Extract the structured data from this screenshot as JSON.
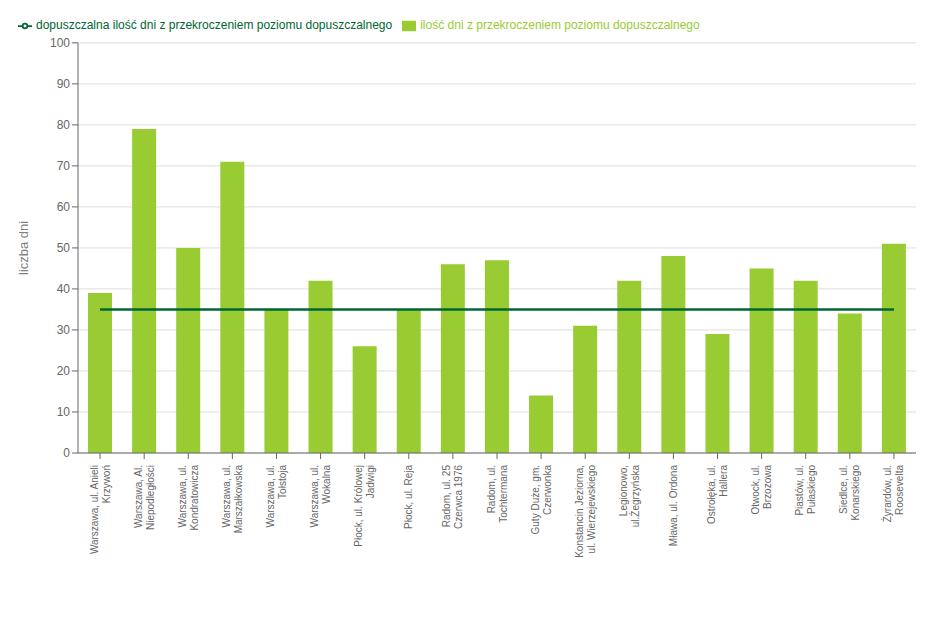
{
  "chart_data": {
    "type": "bar",
    "categories": [
      "Warszawa, ul. Anieli\nKrzywoń",
      "Warszawa, Al.\nNiepodległości",
      "Warszawa, ul.\nKondratowicza",
      "Warszawa, ul.\nMarszałkowska",
      "Warszawa, ul.\nTołstoja",
      "Warszawa, ul.\nWokalna",
      "Płock, ul. Królowej\nJadwigi",
      "Płock, ul. Reja",
      "Radom, ul. 25\nCzerwca 1976",
      "Radom, ul.\nTochtermana",
      "Guty Duże, gm.\nCzerwonka",
      "Konstancin Jeziorna,\nul. Wierzejewskiego",
      "Legionowo,\nul.Żegrzyńska",
      "Mława, ul. Ordona",
      "Ostrołęka, ul.\nHallera",
      "Otwock, ul.\nBrzozowa",
      "Piastów, ul.\nPułaskiego",
      "Siedlce, ul.\nKonarskiego",
      "Żyrardów, ul.\nRoosevelta"
    ],
    "series": [
      {
        "name": "ilość dni z przekroczeniem poziomu dopuszczalnego",
        "type": "bar",
        "color": "#99cc33",
        "values": [
          39,
          79,
          50,
          71,
          35,
          42,
          26,
          35,
          46,
          47,
          14,
          31,
          42,
          48,
          29,
          45,
          42,
          34,
          51
        ]
      },
      {
        "name": "dopuszczalna ilość dni z przekroczeniem poziomu dopuszczalnego",
        "type": "line",
        "color": "#006633",
        "values": [
          35,
          35,
          35,
          35,
          35,
          35,
          35,
          35,
          35,
          35,
          35,
          35,
          35,
          35,
          35,
          35,
          35,
          35,
          35
        ]
      }
    ],
    "y_label": "liczba dni",
    "ylim": [
      0,
      100
    ],
    "yticks": [
      0,
      10,
      20,
      30,
      40,
      50,
      60,
      70,
      80,
      90,
      100
    ],
    "grid": true,
    "legend": "upper left"
  }
}
